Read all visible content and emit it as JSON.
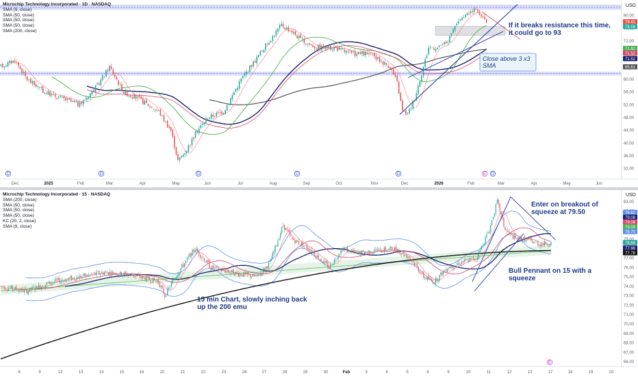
{
  "colors": {
    "up": "#26a69a",
    "down": "#ef5350",
    "zone": "#b6bcf3",
    "zone_line": "#6b78e0",
    "sma200": "#555555",
    "sma50_dark": "#1a1f6e",
    "sma50_green": "#4caf50",
    "sma50_pink": "#d0486a",
    "sma9": "#f06e80",
    "kc": "#5b8def",
    "trend": "#3949ab",
    "ema200": "#111111"
  },
  "chart_data": [
    {
      "type": "candlestick",
      "title": "Microchip Technology Incorporated · 1D · NASDAQ",
      "indicators": [
        "SMA (9, close)",
        "SMA (50, close)",
        "SMA (50, close)",
        "SMA (50, close)",
        "SMA (200, close)"
      ],
      "currency": "USD",
      "y_ticks": [
        "80.00",
        "76.00",
        "72.00",
        "68.00",
        "64.00",
        "60.00",
        "56.00",
        "52.00",
        "48.00",
        "44.00",
        "40.00",
        "36.00",
        "32.00"
      ],
      "ylim": [
        30,
        84
      ],
      "x_ticks": [
        "Dec",
        "2025",
        "Feb",
        "Mar",
        "Apr",
        "May",
        "Jun",
        "Jul",
        "Aug",
        "Sep",
        "Oct",
        "Nov",
        "Dec",
        "2026",
        "Feb",
        "Mar",
        "Apr",
        "May",
        "Jun"
      ],
      "price_labels": [
        {
          "value": "79.41",
          "color": "#ef5350"
        },
        {
          "value": "78.08",
          "color": "#26a69a"
        },
        {
          "value": "71.92",
          "color": "#4caf50"
        },
        {
          "value": "71.52",
          "color": "#d0486a"
        },
        {
          "value": "71.52",
          "color": "#1a1f6e"
        },
        {
          "value": "65.61",
          "color": "#555555"
        }
      ],
      "resistance_zones": [
        [
          81.8,
          83.4
        ],
        [
          61.2,
          62.4
        ]
      ],
      "consolidation_box": [
        73.8,
        76.6
      ],
      "annotations": [
        "If it breaks resistance this time, it could go to 93",
        "Close above 3 x3 SMA"
      ],
      "key_prices": {
        "dec_2024": 64,
        "jan_2025": 56,
        "feb_2025": 52,
        "mar_2025_high": 64,
        "apr_2025_low": 34.1,
        "may_2025": 50,
        "jul_2025_high": 77,
        "aug_2025": 70,
        "oct_2025": 68,
        "nov_2025_low": 49,
        "jan_2026": 70,
        "feb_2026_high": 84,
        "last": 78.08
      }
    },
    {
      "type": "candlestick",
      "title": "Microchip Technology Incorporated · 15 · NASDAQ",
      "indicators": [
        "SMA (200, close)",
        "SMA (50, close)",
        "SMA (50, close)",
        "SMA (50, close)",
        "KC (20, 2, close)",
        "SMA (9, close)"
      ],
      "currency": "USD",
      "y_ticks": [
        "83.00",
        "82.00",
        "81.00",
        "80.00",
        "79.00",
        "78.00",
        "77.00",
        "76.00",
        "75.00",
        "74.00",
        "73.00",
        "72.00",
        "71.00",
        "70.00",
        "69.00",
        "68.00",
        "67.00",
        "66.00"
      ],
      "ylim": [
        65.5,
        83.5
      ],
      "x_ticks": [
        "8",
        "9",
        "12",
        "13",
        "14",
        "15",
        "16",
        "20",
        "21",
        "22",
        "23",
        "26",
        "27",
        "28",
        "29",
        "30",
        "Feb",
        "3",
        "4",
        "5",
        "6",
        "9",
        "10",
        "11",
        "12",
        "13",
        "17",
        "18",
        "19",
        "20"
      ],
      "price_labels": [
        {
          "value": "78.62",
          "color": "#5b8def"
        },
        {
          "value": "79.08",
          "color": "#1a1f6e"
        },
        {
          "value": "79.08",
          "color": "#d0486a"
        },
        {
          "value": "79.09",
          "color": "#4caf50"
        },
        {
          "value": "78.70",
          "color": "#5b8def"
        },
        {
          "value": "78.68",
          "color": "#26a69a"
        },
        {
          "value": "77.98",
          "color": "#1a1f6e"
        },
        {
          "value": "77.78",
          "color": "#111111"
        }
      ],
      "annotations": [
        "Enter on breakout of squeeze at 79.50",
        "Bull Pennant on 15 with a squeeze",
        "15 min Chart, slowly inching back up the 200 emu"
      ],
      "key_prices": {
        "start": 74,
        "mid_jan": 75,
        "jan_21_low": 72.5,
        "jan_22_high": 78.5,
        "jan_28_high": 80.8,
        "feb_6_low": 73.8,
        "feb_11_high": 83.3,
        "last": 78.68
      }
    }
  ],
  "top_legend": {
    "title": "Microchip Technology Incorporated · 1D · NASDAQ",
    "lines": [
      "SMA (9, close)",
      "SMA (50, close)",
      "SMA (50, close)",
      "SMA (50, close)",
      "SMA (200, close)"
    ]
  },
  "bot_legend": {
    "title": "Microchip Technology Incorporated · 15 · NASDAQ",
    "lines": [
      "SMA (200, close)",
      "SMA (50, close)",
      "SMA (50, close)",
      "SMA (50, close)",
      "KC (20, 2, close)",
      "SMA (9, close)"
    ]
  },
  "currency_label": "USD",
  "ann_top_1": "If it breaks resistance this time, it could go to 93",
  "ann_top_2": "Close above 3 x3 SMA",
  "ann_bot_1": "Enter on breakout of squeeze at 79.50",
  "ann_bot_2": "Bull Pennant on 15 with a squeeze",
  "ann_bot_3": "15 min Chart, slowly inching back up the 200 emu",
  "event_markers": {
    "dividend": "D",
    "earnings": "E"
  }
}
